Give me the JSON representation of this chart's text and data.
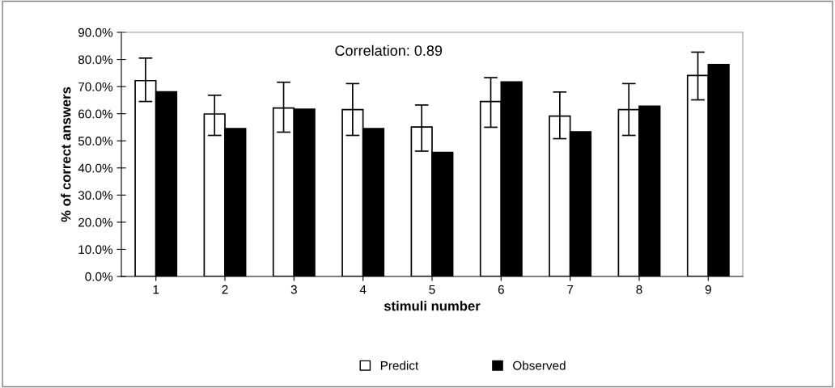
{
  "chart_data": {
    "type": "bar",
    "xlabel": "stimuli number",
    "ylabel": "% of correct answers",
    "annotations": [
      "Correlation: 0.89"
    ],
    "categories": [
      "1",
      "2",
      "3",
      "4",
      "5",
      "6",
      "7",
      "8",
      "9"
    ],
    "series": [
      {
        "name": "Predict",
        "color": "#ffffff",
        "values": [
          72.2,
          59.9,
          62.1,
          61.5,
          55.1,
          64.5,
          59.1,
          61.5,
          74.1
        ],
        "errors": [
          [
            64.5,
            80.5
          ],
          [
            52.0,
            66.8
          ],
          [
            53.2,
            71.6
          ],
          [
            52.0,
            71.1
          ],
          [
            46.2,
            63.2
          ],
          [
            55.0,
            73.3
          ],
          [
            50.8,
            68.0
          ],
          [
            52.0,
            71.1
          ],
          [
            65.1,
            82.7
          ]
        ]
      },
      {
        "name": "Observed",
        "color": "#000000",
        "values": [
          68.1,
          54.5,
          61.7,
          54.5,
          45.7,
          71.7,
          53.3,
          62.8,
          78.1
        ]
      }
    ],
    "ylim": [
      0,
      90
    ],
    "yticks": [
      {
        "value": 0,
        "label": "0.0%"
      },
      {
        "value": 10,
        "label": "10.0%"
      },
      {
        "value": 20,
        "label": "20.0%"
      },
      {
        "value": 30,
        "label": "30.0%"
      },
      {
        "value": 40,
        "label": "40.0%"
      },
      {
        "value": 50,
        "label": "50.0%"
      },
      {
        "value": 60,
        "label": "60.0%"
      },
      {
        "value": 70,
        "label": "70.0%"
      },
      {
        "value": 80,
        "label": "80.0%"
      },
      {
        "value": 90,
        "label": "90.0%"
      }
    ],
    "grid": false,
    "legend": "bottom"
  }
}
